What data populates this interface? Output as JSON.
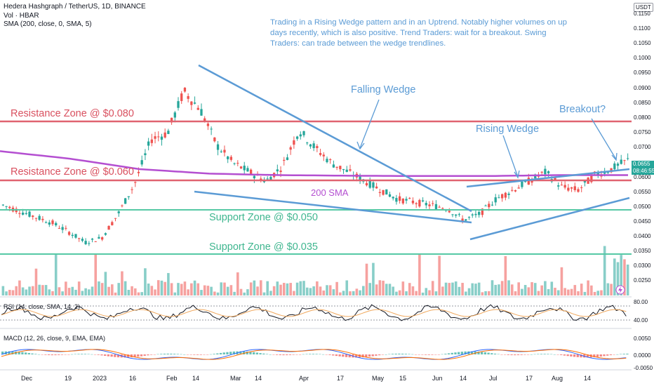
{
  "header": {
    "symbol_line": "Hedera Hashgraph / TetherUS, 1D, BINANCE",
    "vol_line": "Vol · HBAR",
    "sma_line": "SMA (200, close, 0, SMA, 5)",
    "currency": "USDT"
  },
  "annotation_note": "Trading in a Rising Wedge pattern and in an Uptrend. Notably higher volumes on up days recently, which is also positive. Trend Traders: wait for a breakout. Swing Traders: can trade between the wedge trendlines.",
  "labels": {
    "falling_wedge": "Falling Wedge",
    "rising_wedge": "Rising Wedge",
    "breakout": "Breakout?",
    "sma200": "200 SMA",
    "res_080": "Resistance Zone @ $0.080",
    "res_060": "Resistance Zone @ $0.060",
    "sup_050": "Support Zone @ $0.050",
    "sup_035": "Support Zone @ $0.035"
  },
  "price_axis": [
    "0.1150",
    "0.1100",
    "0.1050",
    "0.1000",
    "0.0950",
    "0.0900",
    "0.0850",
    "0.0800",
    "0.0750",
    "0.0700",
    "0.0600",
    "0.0550",
    "0.0500",
    "0.0450",
    "0.0400",
    "0.0350",
    "0.0300",
    "0.0250"
  ],
  "last_price": {
    "value": "0.0655",
    "countdown": "08:46:55"
  },
  "rsi": {
    "label": "RSI (14, close, SMA, 14, 2)",
    "axis": [
      "80.00",
      "40.00"
    ]
  },
  "macd": {
    "label": "MACD (12, 26, close, 9, EMA, EMA)",
    "axis": [
      "0.0050",
      "0.0000",
      "-0.0050"
    ]
  },
  "time_axis": [
    "Dec",
    "19",
    "2023",
    "16",
    "Feb",
    "14",
    "Mar",
    "14",
    "Apr",
    "17",
    "May",
    "15",
    "Jun",
    "14",
    "Jul",
    "17",
    "Aug",
    "14"
  ],
  "colors": {
    "up": "#26a69a",
    "down": "#ef5350",
    "resistance": "#e06370",
    "support": "#56c9a5",
    "trend": "#5b9bd5",
    "sma": "#b44fd1"
  },
  "chart_data": {
    "type": "candlestick",
    "series": [
      {
        "name": "200 SMA",
        "values": [
          0.068,
          0.0655,
          0.062,
          0.0605,
          0.06,
          0.0598,
          0.0597,
          0.0597,
          0.06,
          0.06
        ]
      }
    ],
    "close": [
      0.05,
      0.048,
      0.046,
      0.044,
      0.041,
      0.0375,
      0.039,
      0.047,
      0.057,
      0.072,
      0.074,
      0.088,
      0.082,
      0.07,
      0.064,
      0.061,
      0.058,
      0.063,
      0.075,
      0.069,
      0.064,
      0.061,
      0.058,
      0.055,
      0.052,
      0.051,
      0.05,
      0.049,
      0.045,
      0.047,
      0.052,
      0.055,
      0.058,
      0.061,
      0.056,
      0.055,
      0.06,
      0.062,
      0.065
    ],
    "ylim": [
      0.0205,
      0.1185
    ]
  }
}
